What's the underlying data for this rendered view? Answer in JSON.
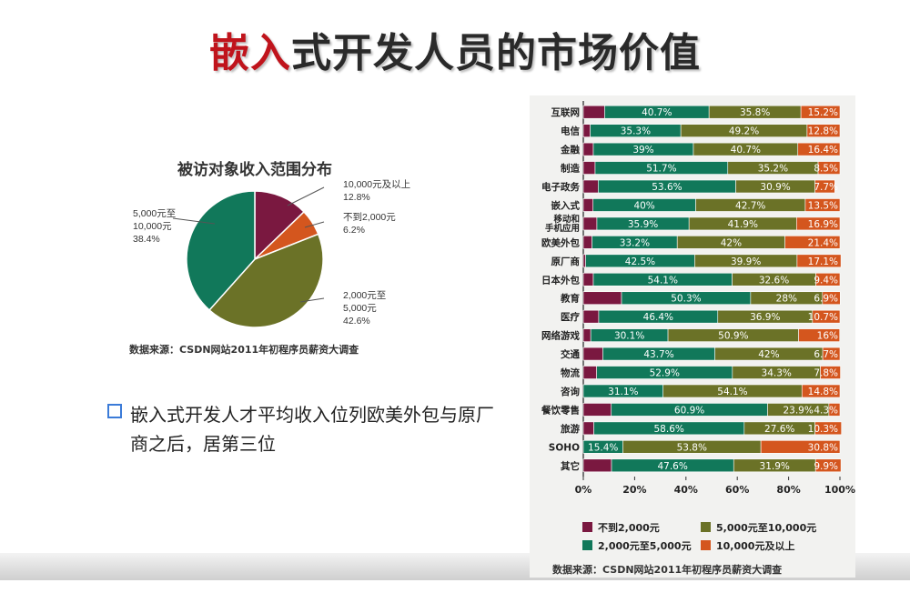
{
  "slide": {
    "title_highlight": "嵌入",
    "title_rest": "式开发人员的市场价值",
    "bullet": "嵌入式开发人才平均收入位列欧美外包与原厂商之后，居第三位"
  },
  "colors": {
    "c1": "#7a1840",
    "c2": "#11785a",
    "c3": "#6b7227",
    "c4": "#d4561e"
  },
  "chart_data": [
    {
      "type": "pie",
      "title": "被访对象收入范围分布",
      "slices": [
        {
          "label": "10,000元及以上",
          "percent_text": "12.8%",
          "value": 12.8,
          "color": "#7a1840"
        },
        {
          "label": "不到2,000元",
          "percent_text": "6.2%",
          "value": 6.2,
          "color": "#d4561e"
        },
        {
          "label": "2,000元至\n5,000元",
          "percent_text": "42.6%",
          "value": 42.6,
          "color": "#6b7227"
        },
        {
          "label": "5,000元至\n10,000元",
          "percent_text": "38.4%",
          "value": 38.4,
          "color": "#11785a"
        }
      ],
      "source": "数据来源：CSDN网站2011年初程序员薪资大调查"
    },
    {
      "type": "bar",
      "orientation": "horizontal-stacked-100",
      "categories": [
        "互联网",
        "电信",
        "金融",
        "制造",
        "电子政务",
        "嵌入式",
        "移动和\n手机应用",
        "欧美外包",
        "原厂商",
        "日本外包",
        "教育",
        "医疗",
        "网络游戏",
        "交通",
        "物流",
        "咨询",
        "餐饮零售",
        "旅游",
        "SOHO",
        "其它"
      ],
      "series": [
        {
          "name": "不到2,000元",
          "color": "#7a1840",
          "values": [
            8.3,
            2.7,
            3.9,
            4.6,
            5.8,
            3.8,
            5.3,
            3.4,
            0.9,
            3.9,
            14.9,
            6.0,
            2.9,
            7.6,
            5.2,
            0.0,
            10.9,
            4.1,
            0.0,
            11.0
          ],
          "labels": [
            "",
            "",
            "",
            "",
            "",
            "",
            "",
            "",
            "",
            "",
            "",
            "",
            "",
            "",
            "",
            "",
            "",
            "",
            "",
            ""
          ]
        },
        {
          "name": "2,000元至5,000元",
          "color": "#11785a",
          "values": [
            40.7,
            35.3,
            39,
            51.7,
            53.6,
            40,
            35.9,
            33.2,
            42.5,
            54.1,
            50.3,
            46.4,
            30.1,
            43.7,
            52.9,
            31.1,
            60.9,
            58.6,
            15.4,
            47.6
          ],
          "labels": [
            "40.7%",
            "35.3%",
            "39%",
            "51.7%",
            "53.6%",
            "40%",
            "35.9%",
            "33.2%",
            "42.5%",
            "54.1%",
            "50.3%",
            "46.4%",
            "30.1%",
            "43.7%",
            "52.9%",
            "31.1%",
            "60.9%",
            "58.6%",
            "15.4%",
            "47.6%"
          ]
        },
        {
          "name": "5,000元至10,000元",
          "color": "#6b7227",
          "values": [
            35.8,
            49.2,
            40.7,
            35.2,
            30.9,
            42.7,
            41.9,
            42,
            39.9,
            32.6,
            28,
            36.9,
            50.9,
            42,
            34.3,
            54.1,
            23.9,
            27.6,
            53.8,
            31.9
          ],
          "labels": [
            "35.8%",
            "49.2%",
            "40.7%",
            "35.2%",
            "30.9%",
            "42.7%",
            "41.9%",
            "42%",
            "39.9%",
            "32.6%",
            "28%",
            "36.9%",
            "50.9%",
            "42%",
            "34.3%",
            "54.1%",
            "23.9%",
            "27.6%",
            "53.8%",
            "31.9%"
          ]
        },
        {
          "name": "10,000元及以上",
          "color": "#d4561e",
          "values": [
            15.2,
            12.8,
            16.4,
            8.5,
            7.7,
            13.5,
            16.9,
            21.4,
            17.1,
            9.4,
            6.9,
            10.7,
            16,
            6.7,
            7.8,
            14.8,
            4.3,
            10.3,
            30.8,
            9.9
          ],
          "labels": [
            "15.2%",
            "12.8%",
            "16.4%",
            "8.5%",
            "7.7%",
            "13.5%",
            "16.9%",
            "21.4%",
            "17.1%",
            "9.4%",
            "6.9%",
            "10.7%",
            "16%",
            "6.7%",
            "7.8%",
            "14.8%",
            "4.3%",
            "10.3%",
            "30.8%",
            "9.9%"
          ]
        }
      ],
      "x_ticks": [
        "0%",
        "20%",
        "40%",
        "60%",
        "80%",
        "100%"
      ],
      "xlim": [
        0,
        100
      ],
      "legend_position": "bottom",
      "source": "数据来源：CSDN网站2011年初程序员薪资大调查"
    }
  ]
}
